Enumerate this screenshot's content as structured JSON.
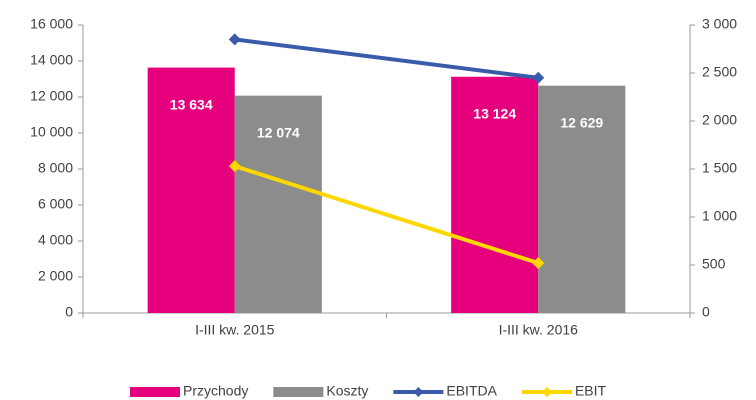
{
  "chart_data": {
    "type": "bar-line",
    "categories": [
      "I-III kw. 2015",
      "I-III kw. 2016"
    ],
    "series": [
      {
        "name": "Przychody",
        "type": "bar",
        "color": "#e6007e",
        "values": [
          13634,
          13124
        ],
        "value_labels": [
          "13 634",
          "13 124"
        ]
      },
      {
        "name": "Koszty",
        "type": "bar",
        "color": "#8c8c8c",
        "values": [
          12074,
          12629
        ],
        "value_labels": [
          "12 074",
          "12 629"
        ]
      },
      {
        "name": "EBITDA",
        "type": "line",
        "axis": "y2",
        "color": "#3a5ba9",
        "values": [
          2850,
          2450
        ]
      },
      {
        "name": "EBIT",
        "type": "line",
        "axis": "y2",
        "color": "#ffd700",
        "values": [
          1530,
          520
        ]
      }
    ],
    "ylim": [
      0,
      16000
    ],
    "yticks": [
      0,
      {
        "value": 2000,
        "label": "2 000"
      },
      {
        "value": 4000,
        "label": "4 000"
      },
      {
        "value": 6000,
        "label": "6 000"
      },
      {
        "value": 8000,
        "label": "8 000"
      },
      {
        "value": 10000,
        "label": "10 000"
      },
      {
        "value": 12000,
        "label": "12 000"
      },
      {
        "value": 14000,
        "label": "14 000"
      },
      {
        "value": 16000,
        "label": "16 000"
      }
    ],
    "y2lim": [
      0,
      3000
    ],
    "y2ticks": [
      0,
      500,
      {
        "value": 1000,
        "label": "1 000"
      },
      {
        "value": 1500,
        "label": "1 500"
      },
      {
        "value": 2000,
        "label": "2 000"
      },
      {
        "value": 2500,
        "label": "2 500"
      },
      {
        "value": 3000,
        "label": "3 000"
      }
    ],
    "legend": "bottom"
  }
}
